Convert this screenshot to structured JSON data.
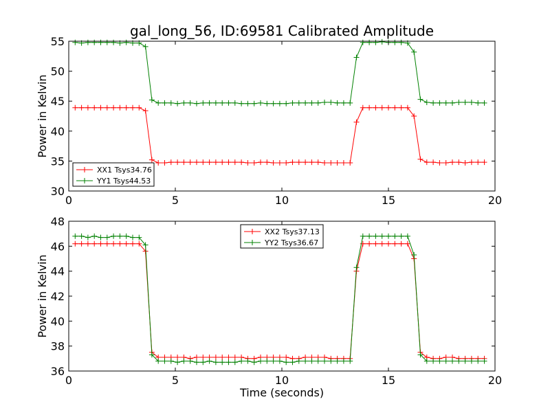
{
  "chart_data": [
    {
      "type": "line",
      "title": "gal_long_56, ID:69581 Calibrated Amplitude",
      "xlabel": "",
      "ylabel": "Power in Kelvin",
      "xlim": [
        0,
        20
      ],
      "ylim": [
        30,
        55
      ],
      "xticks": [
        0,
        5,
        10,
        15,
        20
      ],
      "yticks": [
        30,
        35,
        40,
        45,
        50,
        55
      ],
      "grid": false,
      "legend_placement": "lower-left",
      "x": [
        0.3,
        0.6,
        0.9,
        1.2,
        1.5,
        1.8,
        2.1,
        2.4,
        2.7,
        3.0,
        3.3,
        3.6,
        3.9,
        4.2,
        4.5,
        4.8,
        5.1,
        5.4,
        5.7,
        6.0,
        6.3,
        6.6,
        6.9,
        7.2,
        7.5,
        7.8,
        8.1,
        8.4,
        8.7,
        9.0,
        9.3,
        9.6,
        9.9,
        10.2,
        10.5,
        10.8,
        11.1,
        11.4,
        11.7,
        12.0,
        12.3,
        12.6,
        12.9,
        13.2,
        13.5,
        13.8,
        14.1,
        14.4,
        14.7,
        15.0,
        15.3,
        15.6,
        15.9,
        16.2,
        16.5,
        16.8,
        17.1,
        17.4,
        17.7,
        18.0,
        18.3,
        18.6,
        18.9,
        19.2,
        19.5
      ],
      "series": [
        {
          "name": "XX1 Tsys34.76",
          "color": "#ff0000",
          "values": [
            43.9,
            43.9,
            43.9,
            43.9,
            43.9,
            43.9,
            43.9,
            43.9,
            43.9,
            43.9,
            43.9,
            43.4,
            35.2,
            34.7,
            34.7,
            34.8,
            34.8,
            34.8,
            34.8,
            34.8,
            34.8,
            34.8,
            34.8,
            34.8,
            34.8,
            34.8,
            34.8,
            34.7,
            34.7,
            34.8,
            34.8,
            34.7,
            34.7,
            34.7,
            34.8,
            34.8,
            34.8,
            34.8,
            34.8,
            34.7,
            34.7,
            34.7,
            34.7,
            34.7,
            41.5,
            43.9,
            43.9,
            43.9,
            43.9,
            43.9,
            43.9,
            43.9,
            43.9,
            42.5,
            35.3,
            34.8,
            34.8,
            34.7,
            34.7,
            34.8,
            34.8,
            34.7,
            34.8,
            34.8,
            34.8
          ]
        },
        {
          "name": "YY1 Tsys44.53",
          "color": "#008000",
          "values": [
            54.8,
            54.7,
            54.8,
            54.8,
            54.8,
            54.8,
            54.8,
            54.7,
            54.8,
            54.7,
            54.7,
            54.1,
            45.2,
            44.7,
            44.7,
            44.7,
            44.6,
            44.7,
            44.7,
            44.6,
            44.7,
            44.7,
            44.7,
            44.7,
            44.7,
            44.7,
            44.6,
            44.6,
            44.6,
            44.7,
            44.6,
            44.6,
            44.6,
            44.6,
            44.7,
            44.7,
            44.7,
            44.7,
            44.7,
            44.8,
            44.8,
            44.7,
            44.7,
            44.7,
            52.3,
            54.8,
            54.8,
            54.8,
            54.9,
            54.8,
            54.8,
            54.8,
            54.7,
            53.2,
            45.3,
            44.8,
            44.7,
            44.7,
            44.7,
            44.7,
            44.8,
            44.8,
            44.8,
            44.7,
            44.7
          ]
        }
      ]
    },
    {
      "type": "line",
      "title": "",
      "xlabel": "Time (seconds)",
      "ylabel": "Power in Kelvin",
      "xlim": [
        0,
        20
      ],
      "ylim": [
        36,
        48
      ],
      "xticks": [
        0,
        5,
        10,
        15,
        20
      ],
      "yticks": [
        36,
        38,
        40,
        42,
        44,
        46,
        48
      ],
      "grid": false,
      "legend_placement": "top-center",
      "x": [
        0.3,
        0.6,
        0.9,
        1.2,
        1.5,
        1.8,
        2.1,
        2.4,
        2.7,
        3.0,
        3.3,
        3.6,
        3.9,
        4.2,
        4.5,
        4.8,
        5.1,
        5.4,
        5.7,
        6.0,
        6.3,
        6.6,
        6.9,
        7.2,
        7.5,
        7.8,
        8.1,
        8.4,
        8.7,
        9.0,
        9.3,
        9.6,
        9.9,
        10.2,
        10.5,
        10.8,
        11.1,
        11.4,
        11.7,
        12.0,
        12.3,
        12.6,
        12.9,
        13.2,
        13.5,
        13.8,
        14.1,
        14.4,
        14.7,
        15.0,
        15.3,
        15.6,
        15.9,
        16.2,
        16.5,
        16.8,
        17.1,
        17.4,
        17.7,
        18.0,
        18.3,
        18.6,
        18.9,
        19.2,
        19.5
      ],
      "series": [
        {
          "name": "XX2 Tsys37.13",
          "color": "#ff0000",
          "values": [
            46.2,
            46.2,
            46.2,
            46.2,
            46.2,
            46.2,
            46.2,
            46.2,
            46.2,
            46.2,
            46.2,
            45.6,
            37.5,
            37.1,
            37.1,
            37.1,
            37.1,
            37.1,
            37.0,
            37.1,
            37.1,
            37.1,
            37.1,
            37.1,
            37.1,
            37.1,
            37.1,
            37.0,
            37.0,
            37.1,
            37.1,
            37.1,
            37.1,
            37.1,
            37.0,
            37.0,
            37.1,
            37.1,
            37.1,
            37.1,
            37.0,
            37.0,
            37.0,
            37.0,
            44.0,
            46.2,
            46.2,
            46.2,
            46.2,
            46.2,
            46.2,
            46.2,
            46.2,
            45.0,
            37.5,
            37.1,
            37.0,
            37.0,
            37.1,
            37.1,
            37.0,
            37.0,
            37.0,
            37.0,
            37.0
          ]
        },
        {
          "name": "YY2 Tsys36.67",
          "color": "#008000",
          "values": [
            46.8,
            46.8,
            46.7,
            46.8,
            46.7,
            46.7,
            46.8,
            46.8,
            46.8,
            46.7,
            46.7,
            46.1,
            37.3,
            36.8,
            36.8,
            36.8,
            36.7,
            36.8,
            36.8,
            36.7,
            36.7,
            36.8,
            36.7,
            36.7,
            36.7,
            36.7,
            36.8,
            36.8,
            36.7,
            36.8,
            36.8,
            36.8,
            36.8,
            36.7,
            36.7,
            36.8,
            36.8,
            36.8,
            36.8,
            36.8,
            36.8,
            36.8,
            36.8,
            36.8,
            44.3,
            46.8,
            46.8,
            46.8,
            46.8,
            46.8,
            46.8,
            46.8,
            46.8,
            45.3,
            37.3,
            36.8,
            36.8,
            36.8,
            36.8,
            36.8,
            36.8,
            36.8,
            36.8,
            36.8,
            36.8
          ]
        }
      ]
    }
  ]
}
